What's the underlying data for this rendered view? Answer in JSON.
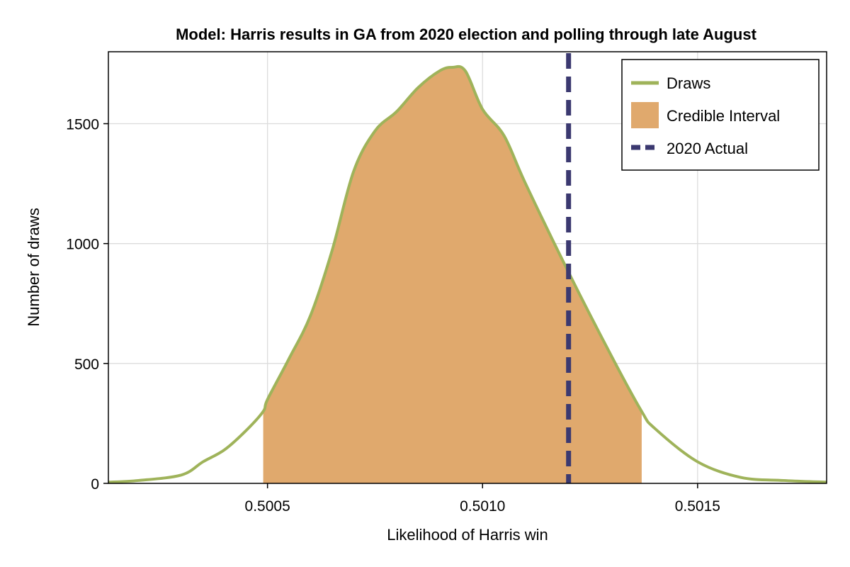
{
  "chart_data": {
    "type": "area",
    "title": "Model: Harris results in GA from 2020 election and polling through late August",
    "xlabel": "Likelihood of Harris win",
    "ylabel": "Number of draws",
    "xlim": [
      0.50013,
      0.5018
    ],
    "ylim": [
      0,
      1800
    ],
    "xticks": [
      0.5005,
      0.501,
      0.5015
    ],
    "xtick_labels": [
      "0.5005",
      "0.5010",
      "0.5015"
    ],
    "yticks": [
      0,
      500,
      1000,
      1500
    ],
    "ytick_labels": [
      "0",
      "500",
      "1000",
      "1500"
    ],
    "grid": true,
    "legend_position": "top-right",
    "series": [
      {
        "name": "Draws",
        "kind": "line",
        "color": "#9fb35a",
        "x": [
          0.50013,
          0.5002,
          0.5003,
          0.50035,
          0.5004,
          0.50045,
          0.50049,
          0.5005,
          0.50055,
          0.5006,
          0.50065,
          0.5007,
          0.50075,
          0.5008,
          0.50085,
          0.5009,
          0.50093,
          0.50096,
          0.501,
          0.50105,
          0.5011,
          0.5012,
          0.5013,
          0.50137,
          0.5014,
          0.5015,
          0.5016,
          0.5017,
          0.5018
        ],
        "y": [
          5,
          12,
          35,
          90,
          140,
          220,
          300,
          350,
          520,
          700,
          970,
          1300,
          1470,
          1550,
          1650,
          1720,
          1735,
          1720,
          1560,
          1450,
          1250,
          880,
          530,
          300,
          230,
          90,
          25,
          12,
          5
        ]
      },
      {
        "name": "Credible Interval",
        "kind": "band",
        "color": "#e0a96d",
        "x_range": [
          0.50049,
          0.50137
        ]
      },
      {
        "name": "2020 Actual",
        "kind": "vline",
        "color": "#3b3970",
        "x": 0.5012
      }
    ]
  }
}
